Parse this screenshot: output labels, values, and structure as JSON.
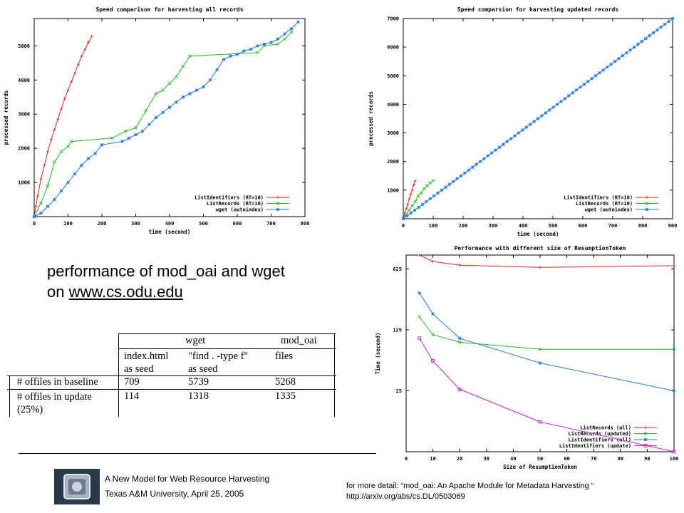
{
  "caption": {
    "line1": "performance of mod_oai and wget",
    "line2_prefix": "on ",
    "line2_link": "www.cs.odu.edu"
  },
  "table": {
    "header": [
      "wget",
      "mod_oai"
    ],
    "subheader": [
      [
        "index.html",
        "as seed"
      ],
      [
        "\"find . -type f\"",
        "as seed"
      ],
      [
        "files"
      ]
    ],
    "rows": [
      {
        "label": [
          "# offiles in baseline"
        ],
        "values": [
          "709",
          "5739",
          "5268"
        ]
      },
      {
        "label": [
          "# offiles in update",
          "(25%)"
        ],
        "values": [
          "114",
          "1318",
          "1335"
        ]
      }
    ]
  },
  "footer": {
    "line1": "A New Model for Web Resource Harvesting",
    "line2": "Texas A&M University, April  25, 2005",
    "detail_line1": "for more detail: “mod_oai: An Apache Module for Metadata Harvesting “",
    "detail_line2": "http://arxiv.org/abs/cs.DL/0503069"
  },
  "colors": {
    "red": "#ee2222",
    "green": "#22bb22",
    "blue": "#2277ee",
    "magenta": "#cc22cc",
    "logo": "#2b3a4a"
  },
  "chart_data": [
    {
      "type": "line",
      "title": "Speed comparison for harvesting all records",
      "xlabel": "time (second)",
      "ylabel": "processed records",
      "xlim": [
        0,
        800
      ],
      "ylim": [
        0,
        5800
      ],
      "xticks": [
        0,
        100,
        200,
        300,
        400,
        500,
        600,
        700,
        800
      ],
      "yticks": [
        1000,
        2000,
        3000,
        4000,
        5000
      ],
      "legend": "bottom-right",
      "series": [
        {
          "name": "ListIdentifiers (RT=10)",
          "color": "#ee2222",
          "x": [
            0,
            5,
            10,
            20,
            30,
            40,
            50,
            60,
            70,
            80,
            90,
            100,
            110,
            120,
            130,
            140,
            150,
            160,
            170
          ],
          "y": [
            0,
            300,
            600,
            1100,
            1500,
            1900,
            2250,
            2550,
            2850,
            3150,
            3450,
            3700,
            3950,
            4200,
            4450,
            4700,
            4900,
            5100,
            5280
          ]
        },
        {
          "name": "ListRecords (RT=10)",
          "color": "#22bb22",
          "x": [
            0,
            20,
            40,
            60,
            80,
            100,
            110,
            230,
            270,
            300,
            330,
            360,
            380,
            400,
            420,
            440,
            460,
            660,
            680,
            720,
            740,
            760
          ],
          "y": [
            0,
            400,
            900,
            1600,
            1900,
            2050,
            2200,
            2300,
            2500,
            2600,
            3100,
            3600,
            3700,
            3900,
            4100,
            4400,
            4700,
            4800,
            5000,
            5050,
            5200,
            5400
          ]
        },
        {
          "name": "wget (autoindex)",
          "color": "#2277ee",
          "x": [
            0,
            20,
            40,
            60,
            80,
            100,
            120,
            140,
            160,
            180,
            200,
            260,
            280,
            300,
            320,
            340,
            360,
            380,
            400,
            420,
            440,
            460,
            480,
            500,
            520,
            540,
            560,
            580,
            600,
            620,
            640,
            660,
            680,
            700,
            720,
            740,
            760,
            780
          ],
          "y": [
            0,
            100,
            300,
            500,
            750,
            1000,
            1250,
            1500,
            1700,
            1850,
            2100,
            2200,
            2300,
            2400,
            2500,
            2700,
            2900,
            3050,
            3200,
            3350,
            3500,
            3600,
            3700,
            3800,
            4000,
            4300,
            4600,
            4700,
            4750,
            4850,
            4900,
            5000,
            5050,
            5100,
            5200,
            5350,
            5500,
            5700
          ]
        }
      ]
    },
    {
      "type": "line",
      "title": "Speed comparsion for harvesting updated records",
      "xlabel": "time (second)",
      "ylabel": "processed records",
      "xlim": [
        0,
        900
      ],
      "ylim": [
        0,
        7000
      ],
      "xticks": [
        0,
        100,
        200,
        300,
        400,
        500,
        600,
        700,
        800,
        900
      ],
      "yticks": [
        1000,
        2000,
        3000,
        4000,
        5000,
        6000,
        7000
      ],
      "legend": "bottom-right",
      "series": [
        {
          "name": "ListIdentifiers (RT=10)",
          "color": "#ee2222",
          "x": [
            0,
            5,
            10,
            15,
            20,
            25,
            30,
            35,
            40
          ],
          "y": [
            0,
            200,
            350,
            500,
            700,
            850,
            1000,
            1180,
            1320
          ]
        },
        {
          "name": "ListRecords (RT=10)",
          "color": "#22bb22",
          "x": [
            0,
            10,
            20,
            30,
            40,
            50,
            60,
            70,
            80,
            90,
            100
          ],
          "y": [
            0,
            150,
            300,
            450,
            600,
            800,
            900,
            1050,
            1150,
            1250,
            1330
          ]
        },
        {
          "name": "wget (autoindex)",
          "color": "#2277ee",
          "x": [
            0,
            900
          ],
          "y": [
            0,
            7000
          ]
        }
      ]
    },
    {
      "type": "line",
      "title": "Performance with different size of ResumptionToken",
      "xlabel": "Size of ResumptionToken",
      "ylabel": "Time (second)",
      "xlim": [
        0,
        100
      ],
      "ylim": [
        5,
        900
      ],
      "yscale": "log",
      "xticks": [
        0,
        10,
        20,
        30,
        40,
        50,
        60,
        70,
        80,
        90,
        100
      ],
      "yticks": [
        25,
        125,
        625
      ],
      "legend": "bottom-right",
      "series": [
        {
          "name": "ListRecords (all)",
          "color": "#ee2222",
          "x": [
            5,
            10,
            20,
            50,
            100
          ],
          "y": [
            900,
            760,
            690,
            650,
            680
          ]
        },
        {
          "name": "ListRecords (updated)",
          "color": "#22bb22",
          "x": [
            5,
            10,
            20,
            50,
            100
          ],
          "y": [
            175,
            110,
            90,
            75,
            75
          ]
        },
        {
          "name": "ListIdentifiers (all)",
          "color": "#2277ee",
          "x": [
            5,
            10,
            20,
            50,
            100
          ],
          "y": [
            330,
            190,
            100,
            52,
            25
          ]
        },
        {
          "name": "ListIdentifiers (update)",
          "color": "#cc22cc",
          "x": [
            5,
            10,
            20,
            50,
            100
          ],
          "y": [
            100,
            55,
            26,
            11,
            5
          ]
        }
      ]
    }
  ]
}
